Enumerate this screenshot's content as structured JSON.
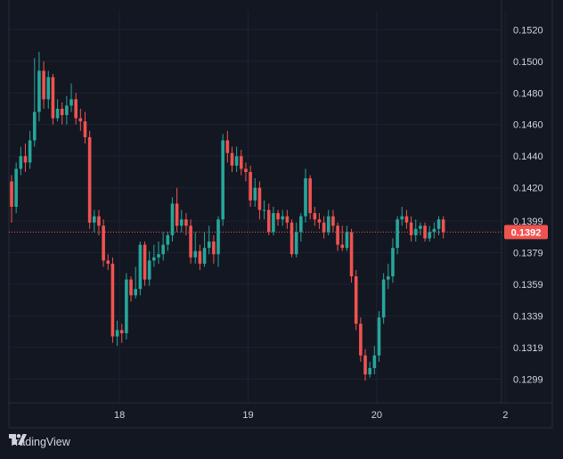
{
  "brand": {
    "name": "TradingView"
  },
  "colors": {
    "background": "#131722",
    "grid": "#1e2230",
    "axis_text": "#d1d4dc",
    "up": "#26a69a",
    "down": "#ef5350",
    "price_line": "#ef5350"
  },
  "chart_data": {
    "type": "candlestick",
    "x_axis": {
      "ticks": [
        "18",
        "19",
        "20",
        "2"
      ]
    },
    "y_axis": {
      "ticks": [
        0.152,
        0.15,
        0.148,
        0.146,
        0.144,
        0.142,
        0.1399,
        0.1379,
        0.1359,
        0.1339,
        0.1319,
        0.1299
      ],
      "decimals": 4
    },
    "ylim": [
      0.1284,
      0.1532
    ],
    "current_price": {
      "value": 0.1392,
      "label": "0.1392"
    },
    "candles": [
      [
        0.1424,
        0.1408,
        0.1428,
        0.1398
      ],
      [
        0.1408,
        0.1432,
        0.1436,
        0.1404
      ],
      [
        0.1432,
        0.144,
        0.1446,
        0.1428
      ],
      [
        0.144,
        0.1436,
        0.1448,
        0.143
      ],
      [
        0.1436,
        0.145,
        0.1456,
        0.1432
      ],
      [
        0.145,
        0.1468,
        0.1502,
        0.1446
      ],
      [
        0.1468,
        0.1494,
        0.1506,
        0.1462
      ],
      [
        0.1494,
        0.1476,
        0.15,
        0.147
      ],
      [
        0.1476,
        0.149,
        0.1494,
        0.147
      ],
      [
        0.149,
        0.1464,
        0.1492,
        0.146
      ],
      [
        0.1464,
        0.147,
        0.1476,
        0.1462
      ],
      [
        0.147,
        0.1466,
        0.1474,
        0.146
      ],
      [
        0.1466,
        0.1472,
        0.1478,
        0.146
      ],
      [
        0.1472,
        0.1476,
        0.1486,
        0.1468
      ],
      [
        0.1476,
        0.1464,
        0.148,
        0.146
      ],
      [
        0.1464,
        0.1462,
        0.147,
        0.1456
      ],
      [
        0.1462,
        0.1452,
        0.1468,
        0.1448
      ],
      [
        0.1452,
        0.1398,
        0.1456,
        0.1394
      ],
      [
        0.1398,
        0.1402,
        0.1406,
        0.1392
      ],
      [
        0.1402,
        0.1396,
        0.1406,
        0.139
      ],
      [
        0.1396,
        0.1374,
        0.14,
        0.137
      ],
      [
        0.1374,
        0.1372,
        0.1378,
        0.1368
      ],
      [
        0.1372,
        0.1326,
        0.1376,
        0.1322
      ],
      [
        0.1326,
        0.133,
        0.1336,
        0.132
      ],
      [
        0.133,
        0.1328,
        0.1334,
        0.1322
      ],
      [
        0.1328,
        0.1362,
        0.1366,
        0.1324
      ],
      [
        0.1362,
        0.1352,
        0.1364,
        0.1348
      ],
      [
        0.1352,
        0.1356,
        0.137,
        0.135
      ],
      [
        0.1356,
        0.1384,
        0.1386,
        0.1352
      ],
      [
        0.1384,
        0.1362,
        0.1386,
        0.1358
      ],
      [
        0.1362,
        0.1374,
        0.138,
        0.1358
      ],
      [
        0.1374,
        0.1376,
        0.1384,
        0.137
      ],
      [
        0.1376,
        0.1378,
        0.1386,
        0.1372
      ],
      [
        0.1378,
        0.1384,
        0.1392,
        0.1374
      ],
      [
        0.1384,
        0.139,
        0.1392,
        0.138
      ],
      [
        0.139,
        0.141,
        0.1414,
        0.1386
      ],
      [
        0.141,
        0.1396,
        0.142,
        0.1392
      ],
      [
        0.1396,
        0.14,
        0.1406,
        0.1392
      ],
      [
        0.14,
        0.1396,
        0.1404,
        0.139
      ],
      [
        0.1396,
        0.1376,
        0.14,
        0.1372
      ],
      [
        0.1376,
        0.138,
        0.1392,
        0.1372
      ],
      [
        0.138,
        0.1372,
        0.1384,
        0.1368
      ],
      [
        0.1372,
        0.1382,
        0.1392,
        0.137
      ],
      [
        0.1382,
        0.1386,
        0.1396,
        0.1378
      ],
      [
        0.1386,
        0.1378,
        0.139,
        0.1372
      ],
      [
        0.1378,
        0.14,
        0.1402,
        0.137
      ],
      [
        0.14,
        0.145,
        0.1454,
        0.1396
      ],
      [
        0.145,
        0.1442,
        0.1456,
        0.1436
      ],
      [
        0.1442,
        0.1434,
        0.1446,
        0.143
      ],
      [
        0.1434,
        0.144,
        0.1446,
        0.143
      ],
      [
        0.144,
        0.1432,
        0.1444,
        0.1428
      ],
      [
        0.1432,
        0.143,
        0.1436,
        0.1424
      ],
      [
        0.143,
        0.1412,
        0.1434,
        0.1408
      ],
      [
        0.1412,
        0.142,
        0.1426,
        0.1408
      ],
      [
        0.142,
        0.1406,
        0.1424,
        0.14
      ],
      [
        0.1406,
        0.1406,
        0.1412,
        0.14
      ],
      [
        0.1406,
        0.1392,
        0.141,
        0.139
      ],
      [
        0.1392,
        0.1404,
        0.1408,
        0.139
      ],
      [
        0.1404,
        0.14,
        0.1406,
        0.1396
      ],
      [
        0.14,
        0.1402,
        0.1406,
        0.1396
      ],
      [
        0.1402,
        0.1398,
        0.1406,
        0.1394
      ],
      [
        0.1398,
        0.1378,
        0.14,
        0.1376
      ],
      [
        0.1378,
        0.1392,
        0.1398,
        0.1376
      ],
      [
        0.1392,
        0.1402,
        0.1404,
        0.1386
      ],
      [
        0.1402,
        0.1426,
        0.1432,
        0.1398
      ],
      [
        0.1426,
        0.1404,
        0.1428,
        0.14
      ],
      [
        0.1404,
        0.14,
        0.1408,
        0.1396
      ],
      [
        0.14,
        0.1398,
        0.1404,
        0.1394
      ],
      [
        0.1398,
        0.1392,
        0.1402,
        0.1388
      ],
      [
        0.1392,
        0.1402,
        0.1406,
        0.139
      ],
      [
        0.1402,
        0.1396,
        0.1406,
        0.1392
      ],
      [
        0.1396,
        0.1384,
        0.1398,
        0.138
      ],
      [
        0.1384,
        0.1382,
        0.1396,
        0.138
      ],
      [
        0.1382,
        0.1392,
        0.1396,
        0.138
      ],
      [
        0.1392,
        0.1364,
        0.1394,
        0.136
      ],
      [
        0.1364,
        0.1334,
        0.1368,
        0.133
      ],
      [
        0.1334,
        0.1314,
        0.1338,
        0.131
      ],
      [
        0.1314,
        0.1302,
        0.1318,
        0.1298
      ],
      [
        0.1302,
        0.1306,
        0.131,
        0.13
      ],
      [
        0.1306,
        0.1314,
        0.132,
        0.1302
      ],
      [
        0.1314,
        0.1338,
        0.1342,
        0.131
      ],
      [
        0.1338,
        0.1362,
        0.1366,
        0.1334
      ],
      [
        0.1362,
        0.1364,
        0.1372,
        0.1356
      ],
      [
        0.1364,
        0.1382,
        0.1388,
        0.136
      ],
      [
        0.1382,
        0.14,
        0.1402,
        0.1378
      ],
      [
        0.14,
        0.1402,
        0.1408,
        0.1396
      ],
      [
        0.1402,
        0.1398,
        0.1406,
        0.1394
      ],
      [
        0.1398,
        0.139,
        0.1402,
        0.1386
      ],
      [
        0.139,
        0.1394,
        0.14,
        0.1386
      ],
      [
        0.1394,
        0.1396,
        0.1398,
        0.139
      ],
      [
        0.1396,
        0.1388,
        0.1398,
        0.1386
      ],
      [
        0.1388,
        0.1392,
        0.1396,
        0.1386
      ],
      [
        0.1392,
        0.1394,
        0.1398,
        0.1388
      ],
      [
        0.1394,
        0.14,
        0.1402,
        0.139
      ],
      [
        0.14,
        0.1392,
        0.1402,
        0.1388
      ]
    ]
  }
}
